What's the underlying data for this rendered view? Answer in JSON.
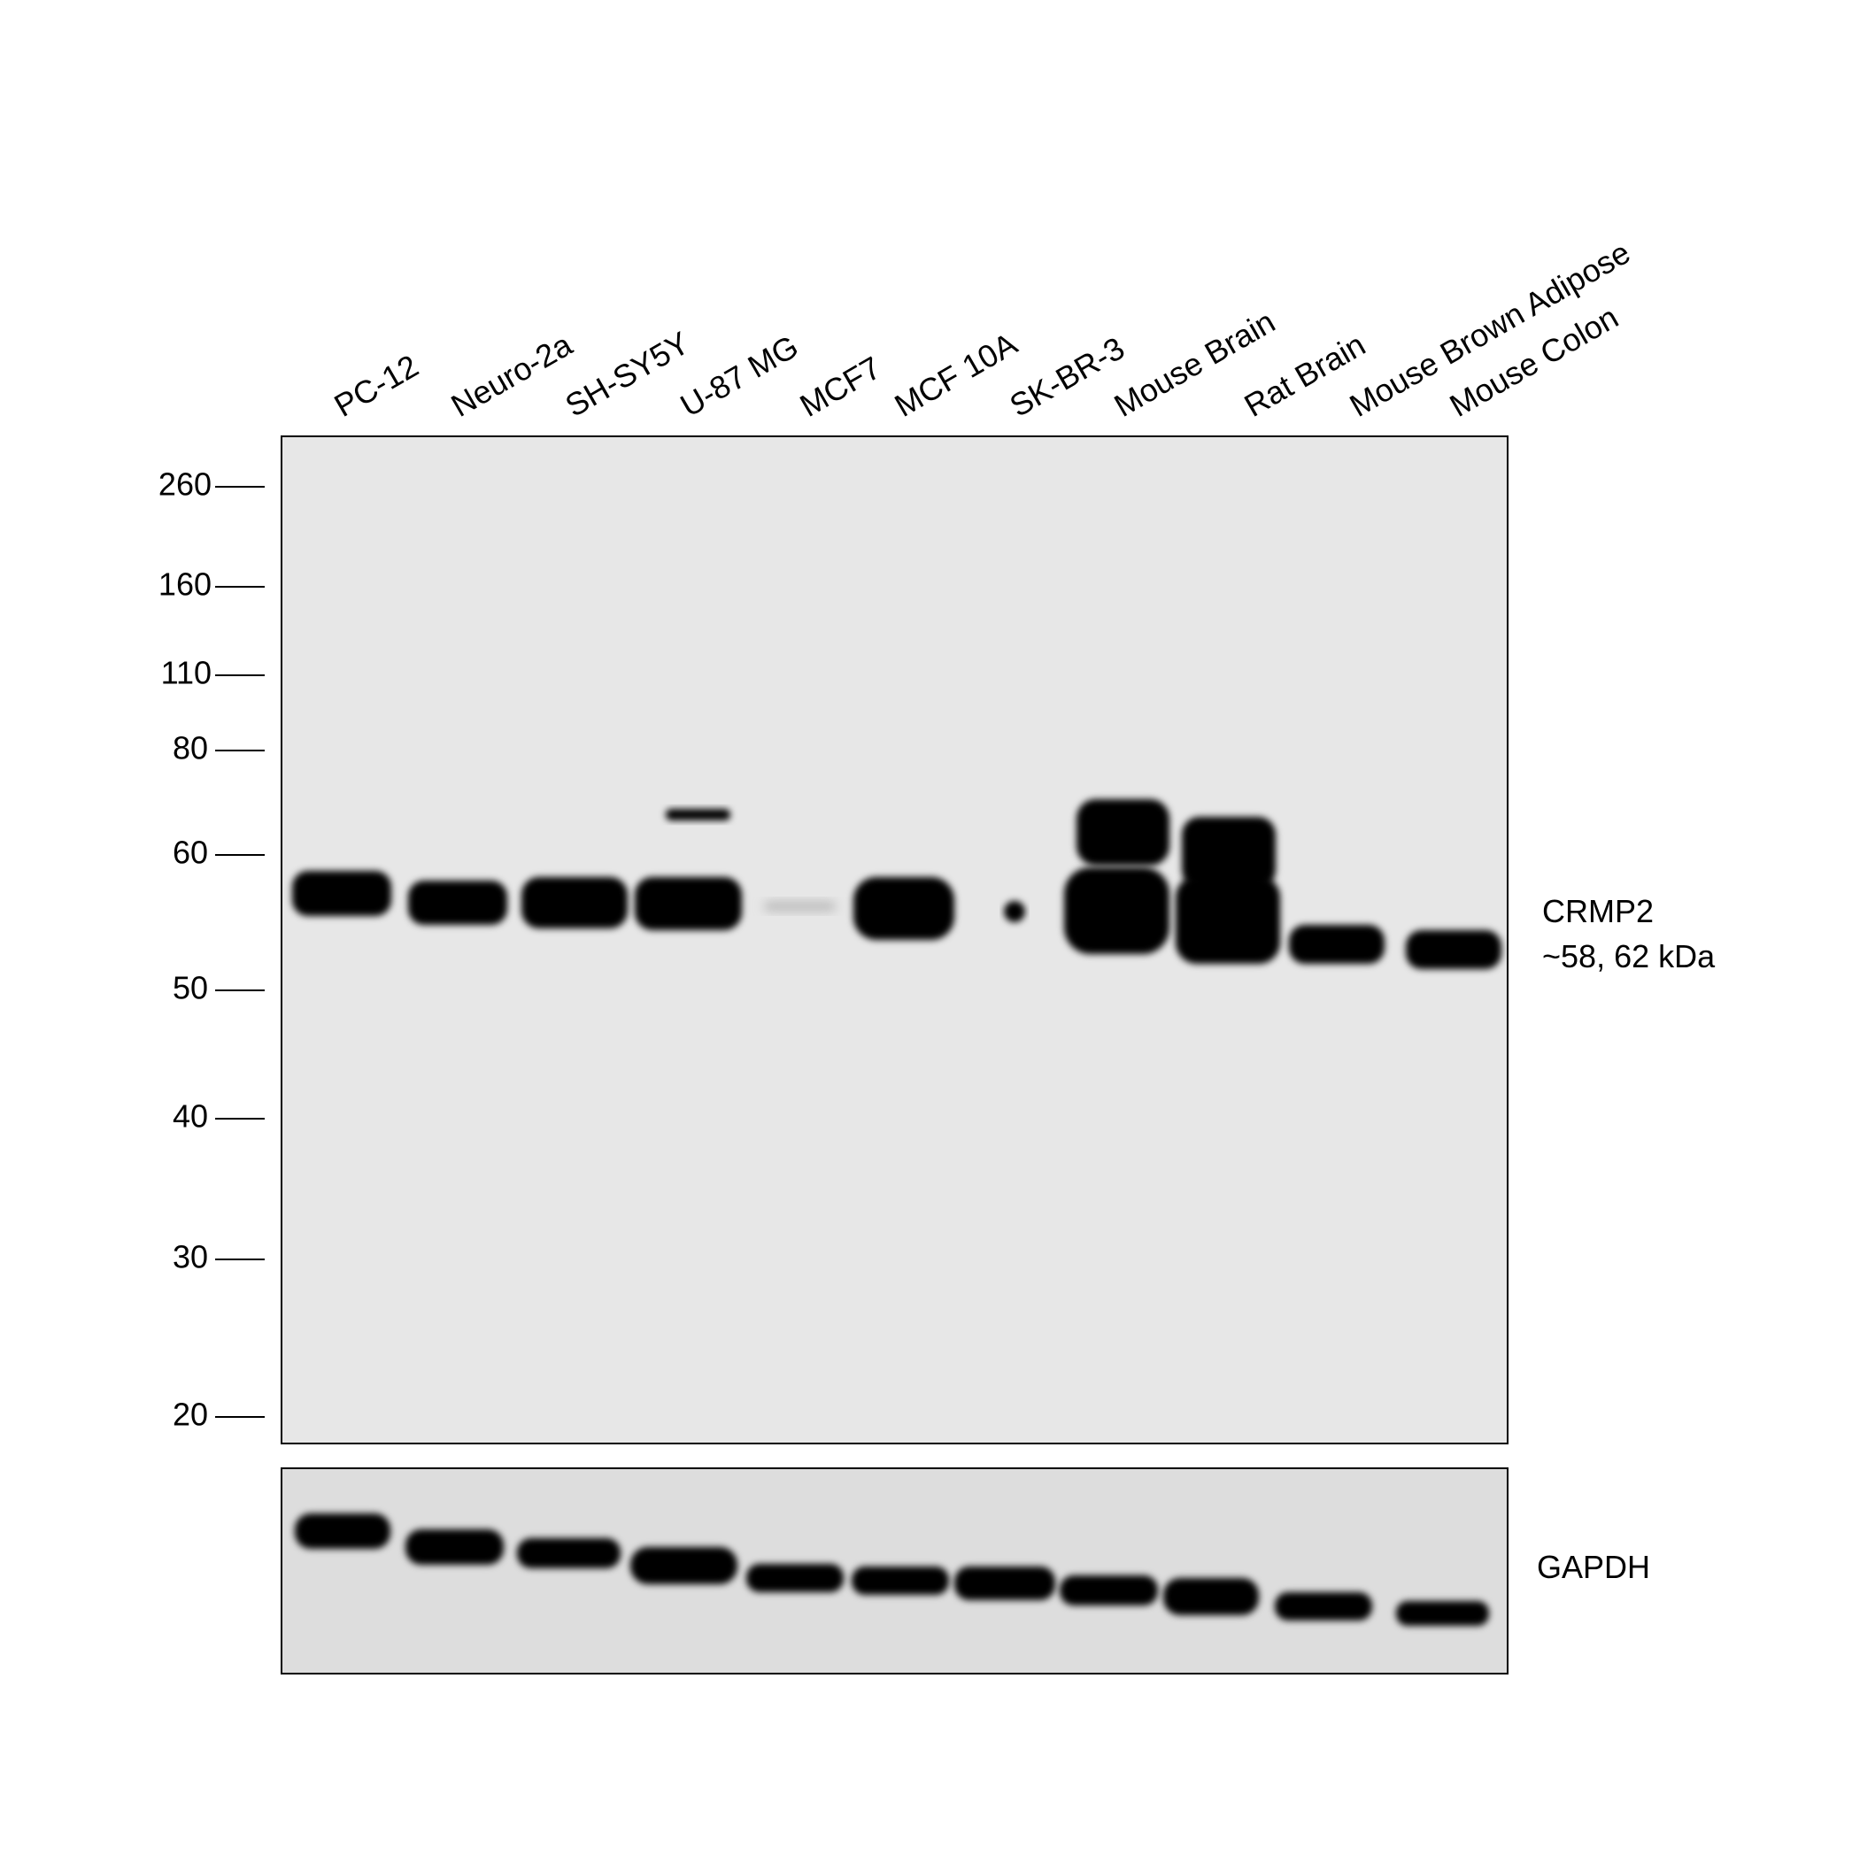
{
  "lanes": [
    "PC-12",
    "Neuro-2a",
    "SH-SY5Y",
    "U-87 MG",
    "MCF7",
    "MCF 10A",
    "SK-BR-3",
    "Mouse Brain",
    "Rat Brain",
    "Mouse Brown Adipose",
    "Mouse Colon"
  ],
  "markers": [
    260,
    160,
    110,
    80,
    60,
    50,
    40,
    30,
    20
  ],
  "target": {
    "name": "CRMP2",
    "size": "~58, 62 kDa"
  },
  "loading_control": "GAPDH"
}
